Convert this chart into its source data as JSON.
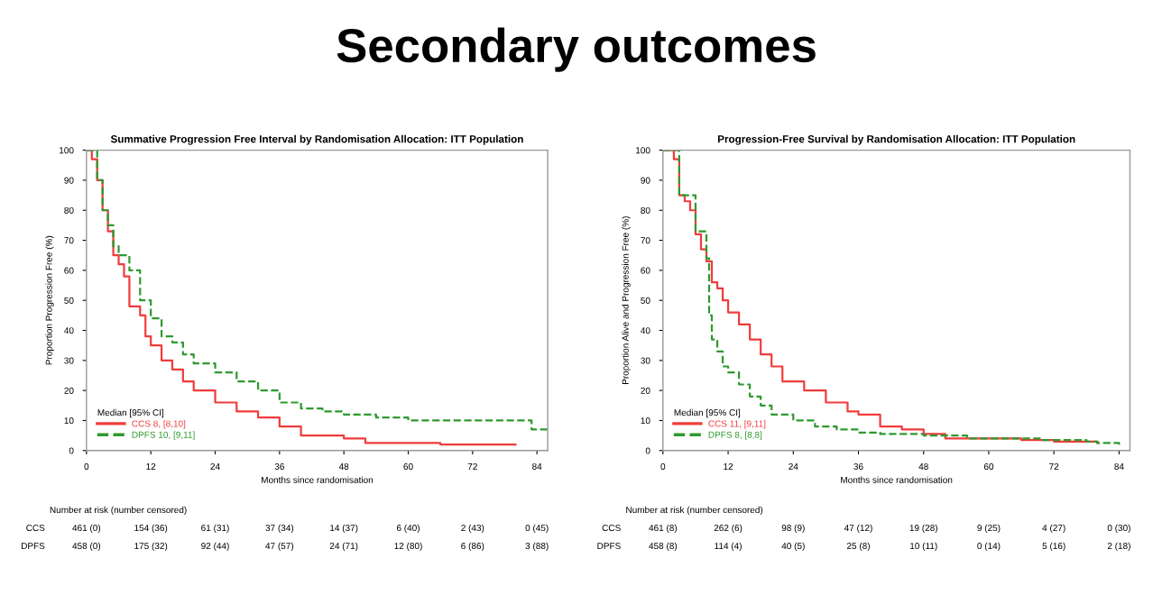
{
  "chart_data": [
    {
      "type": "step",
      "subtitle": "Secondary outcomes",
      "title": "Summative Progression Free Interval by Randomisation Allocation: ITT Population",
      "xlabel": "Months since randomisation",
      "ylabel": "Proportion Progression Free (%)",
      "legend_title": "Median [95% CI]",
      "legend": "bottom left",
      "xlim": [
        0,
        86
      ],
      "xticks": [
        0,
        12,
        24,
        36,
        48,
        60,
        72,
        84
      ],
      "ylim": [
        0,
        100
      ],
      "yticks": [
        0,
        10,
        20,
        30,
        40,
        50,
        60,
        70,
        80,
        90,
        100
      ],
      "series": [
        {
          "name": "CCS 8, [8,10]",
          "color": "#f03c3c",
          "line_style": "solid",
          "x": [
            0,
            1,
            2,
            3,
            4,
            5,
            6,
            7,
            8,
            10,
            11,
            12,
            14,
            16,
            18,
            20,
            24,
            28,
            32,
            36,
            40,
            44,
            48,
            52,
            60,
            66,
            74,
            80
          ],
          "values": [
            100,
            97,
            90,
            80,
            73,
            65,
            62,
            58,
            48,
            45,
            38,
            35,
            30,
            27,
            23,
            20,
            16,
            13,
            11,
            8,
            5,
            5,
            4,
            2.5,
            2.5,
            2,
            2,
            2
          ]
        },
        {
          "name": "DPFS 10, [9,11]",
          "color": "#2e9a2e",
          "line_style": "dashed",
          "x": [
            0,
            2,
            3,
            4,
            5,
            6,
            8,
            10,
            12,
            14,
            16,
            18,
            20,
            24,
            28,
            32,
            36,
            40,
            44,
            48,
            54,
            60,
            72,
            82,
            83,
            86
          ],
          "values": [
            100,
            90,
            80,
            75,
            68,
            65,
            60,
            50,
            44,
            38,
            36,
            32,
            29,
            26,
            23,
            20,
            16,
            14,
            13,
            12,
            11,
            10,
            10,
            10,
            7,
            7
          ]
        }
      ],
      "annotations": [
        "Number at risk (number censored)",
        "CCS",
        "461 (0)",
        "154 (36)",
        "61 (31)",
        "37 (34)",
        "14 (37)",
        "6 (40)",
        "2 (43)",
        "0 (45)",
        "DPFS",
        "458 (0)",
        "175 (32)",
        "92 (44)",
        "47 (57)",
        "24 (71)",
        "12 (80)",
        "6 (86)",
        "3 (88)"
      ]
    },
    {
      "type": "step",
      "title": "Progression-Free Survival by Randomisation Allocation: ITT Population",
      "xlabel": "Months since randomisation",
      "ylabel": "Proportion Alive and Progression Free (%)",
      "legend_title": "Median [95% CI]",
      "legend": "bottom left",
      "xlim": [
        0,
        86
      ],
      "xticks": [
        0,
        12,
        24,
        36,
        48,
        60,
        72,
        84
      ],
      "ylim": [
        0,
        100
      ],
      "yticks": [
        0,
        10,
        20,
        30,
        40,
        50,
        60,
        70,
        80,
        90,
        100
      ],
      "series": [
        {
          "name": "CCS 11, [9,11]",
          "color": "#f03c3c",
          "line_style": "solid",
          "x": [
            0,
            2,
            3,
            4,
            5,
            6,
            7,
            8,
            9,
            10,
            11,
            12,
            14,
            16,
            18,
            20,
            22,
            26,
            30,
            34,
            36,
            40,
            44,
            48,
            52,
            60,
            66,
            72,
            80
          ],
          "values": [
            100,
            97,
            85,
            83,
            80,
            72,
            67,
            63,
            56,
            54,
            50,
            46,
            42,
            37,
            32,
            28,
            23,
            20,
            16,
            13,
            12,
            8,
            7,
            5.5,
            4,
            4,
            3.5,
            3,
            2.5
          ]
        },
        {
          "name": "DPFS 8, [8,8]",
          "color": "#2e9a2e",
          "line_style": "dashed",
          "x": [
            0,
            3,
            6,
            8,
            8.5,
            9,
            10,
            11,
            12,
            14,
            16,
            18,
            20,
            24,
            28,
            32,
            36,
            40,
            48,
            56,
            70,
            78,
            80,
            84
          ],
          "values": [
            100,
            85,
            73,
            64,
            45,
            37,
            33,
            28,
            26,
            22,
            18,
            15,
            12,
            10,
            8,
            7,
            6,
            5.5,
            5,
            4,
            3.5,
            3,
            2.5,
            2
          ]
        }
      ],
      "annotations": [
        "Number at risk (number censored)",
        "CCS",
        "461 (8)",
        "262 (6)",
        "98 (9)",
        "47 (12)",
        "19 (28)",
        "9 (25)",
        "4 (27)",
        "0 (30)",
        "DPFS",
        "458 (8)",
        "114 (4)",
        "40 (5)",
        "25 (8)",
        "10 (11)",
        "0 (14)",
        "5 (16)",
        "2 (18)"
      ]
    }
  ]
}
